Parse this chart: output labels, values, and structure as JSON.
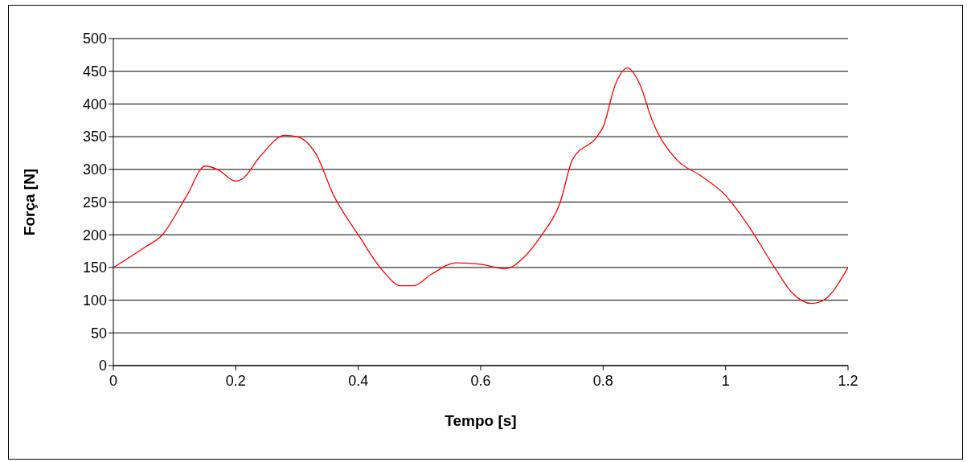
{
  "chart_data": {
    "type": "line",
    "xlabel": "Tempo [s]",
    "ylabel": "Força [N]",
    "x": [
      0,
      0.05,
      0.08,
      0.12,
      0.15,
      0.17,
      0.2,
      0.21,
      0.24,
      0.28,
      0.3,
      0.33,
      0.36,
      0.4,
      0.44,
      0.47,
      0.49,
      0.52,
      0.56,
      0.6,
      0.64,
      0.67,
      0.7,
      0.73,
      0.75,
      0.79,
      0.8,
      0.82,
      0.84,
      0.86,
      0.88,
      0.92,
      0.96,
      1.0,
      1.04,
      1.08,
      1.11,
      1.14,
      1.16,
      1.2
    ],
    "series": [
      {
        "color": "#ff0000",
        "values": [
          150,
          180,
          200,
          260,
          305,
          300,
          282,
          285,
          320,
          352,
          350,
          325,
          260,
          200,
          145,
          122,
          122,
          140,
          157,
          155,
          148,
          165,
          200,
          250,
          315,
          350,
          365,
          430,
          455,
          430,
          375,
          315,
          290,
          260,
          210,
          150,
          110,
          95,
          100,
          150
        ]
      }
    ],
    "xlim": [
      0,
      1.2
    ],
    "xticks": [
      0,
      0.2,
      0.4,
      0.6,
      0.8,
      1,
      1.2
    ],
    "ylim": [
      0,
      500
    ],
    "yticks": [
      0,
      50,
      100,
      150,
      200,
      250,
      300,
      350,
      400,
      450,
      500
    ],
    "grid": "y",
    "legend": false,
    "marker": "none",
    "line_style": "solid"
  }
}
